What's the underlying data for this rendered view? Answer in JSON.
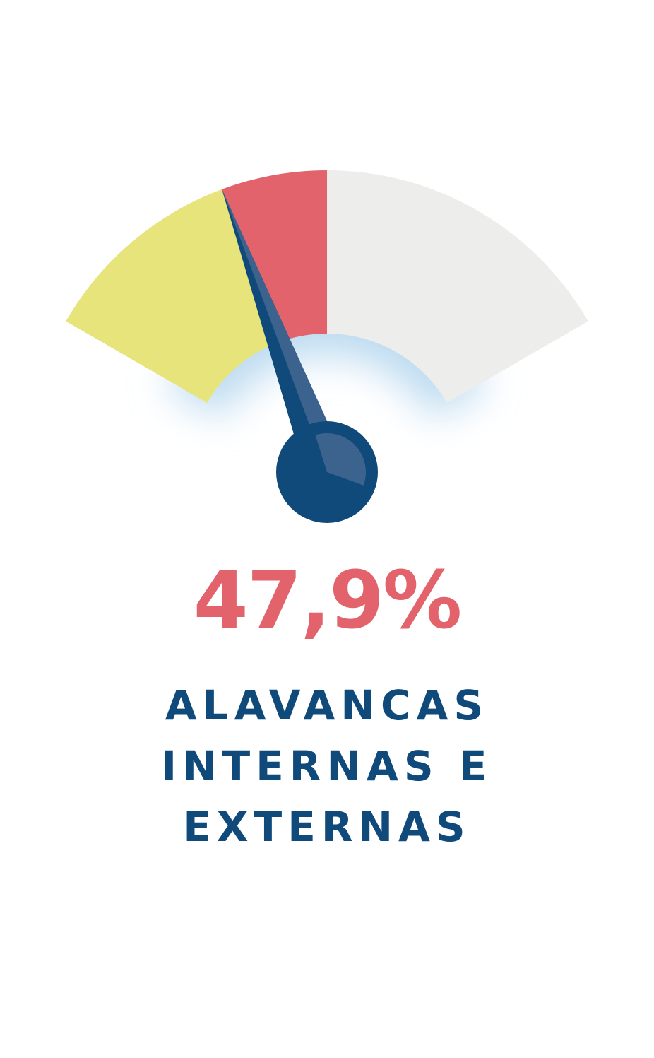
{
  "chart_data": {
    "type": "gauge",
    "value_label": "47,9%",
    "caption_lines": [
      "ALAVANCAS",
      "INTERNAS E",
      "EXTERNAS"
    ],
    "needle_value": 0.33,
    "segments": [
      {
        "from": 0.0,
        "to": 0.33,
        "color": "#E6E47A"
      },
      {
        "from": 0.33,
        "to": 0.5,
        "color": "#E3636C"
      },
      {
        "from": 0.5,
        "to": 1.0,
        "color": "#EDEDEB"
      }
    ]
  },
  "colors": {
    "value": "#E3636C",
    "caption": "#0F4A7B",
    "needle": "#0F4A7B",
    "needle_highlight": "#3C628E",
    "glow": "#BBDAF0"
  }
}
